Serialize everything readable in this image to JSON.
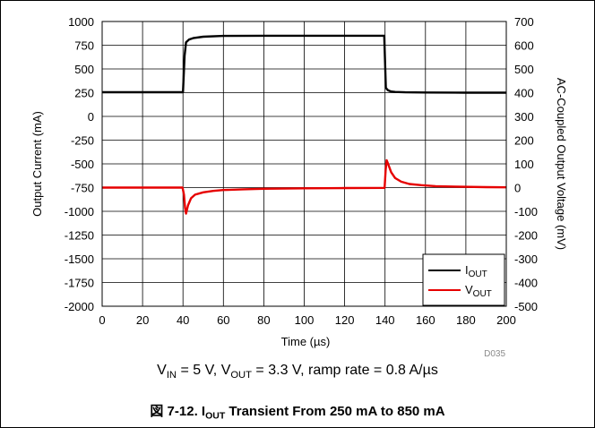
{
  "chart_data": {
    "type": "line",
    "xlabel": "Time (µs)",
    "ylabel": "Output Current (mA)",
    "y2label": "AC-Coupled Output Voltage (mV)",
    "xlim": [
      0,
      200
    ],
    "ylim": [
      -2000,
      1000
    ],
    "y2lim": [
      -500,
      700
    ],
    "xticks": [
      0,
      20,
      40,
      60,
      80,
      100,
      120,
      140,
      160,
      180,
      200
    ],
    "yticks": [
      1000,
      750,
      500,
      250,
      0,
      -250,
      -500,
      -750,
      -1000,
      -1250,
      -1500,
      -1750,
      -2000
    ],
    "y2ticks": [
      700,
      600,
      500,
      400,
      300,
      200,
      100,
      0,
      -100,
      -200,
      -300,
      -400,
      -500
    ],
    "grid": true,
    "legend_position": "bottom-right",
    "figure_id": "D035",
    "series": [
      {
        "name": "I",
        "name_sub": "OUT",
        "axis": "left",
        "color": "#000000",
        "x": [
          0,
          40,
          40.8,
          41.5,
          43,
          45,
          50,
          60,
          80,
          100,
          120,
          139.6,
          140.4,
          141.5,
          143,
          145,
          150,
          160,
          180,
          200
        ],
        "y": [
          255,
          255,
          640,
          780,
          810,
          825,
          840,
          848,
          850,
          850,
          850,
          850,
          300,
          275,
          262,
          258,
          254,
          252,
          250,
          250
        ]
      },
      {
        "name": "V",
        "name_sub": "OUT",
        "axis": "right",
        "color": "#e60000",
        "x": [
          0,
          39.8,
          40.5,
          41,
          41.5,
          42.5,
          44,
          46,
          50,
          55,
          60,
          70,
          80,
          100,
          120,
          139.8,
          140.3,
          140.8,
          141.5,
          143,
          145,
          148,
          152,
          158,
          165,
          175,
          190,
          200
        ],
        "y": [
          0,
          0,
          -30,
          -85,
          -110,
          -75,
          -45,
          -30,
          -20,
          -14,
          -10,
          -7,
          -5,
          -3,
          -2,
          -1,
          75,
          115,
          100,
          65,
          40,
          25,
          15,
          10,
          6,
          4,
          2,
          1
        ]
      }
    ]
  },
  "text": {
    "conditions_v": "V",
    "conditions_in_sub": "IN",
    "conditions_mid": " = 5 V, V",
    "conditions_out_sub": "OUT",
    "conditions_end": " = 3.3 V, ramp rate = 0.8 A/µs",
    "caption_pre": "図 7-12. I",
    "caption_sub": "OUT",
    "caption_post": " Transient From 250 mA to 850 mA"
  }
}
